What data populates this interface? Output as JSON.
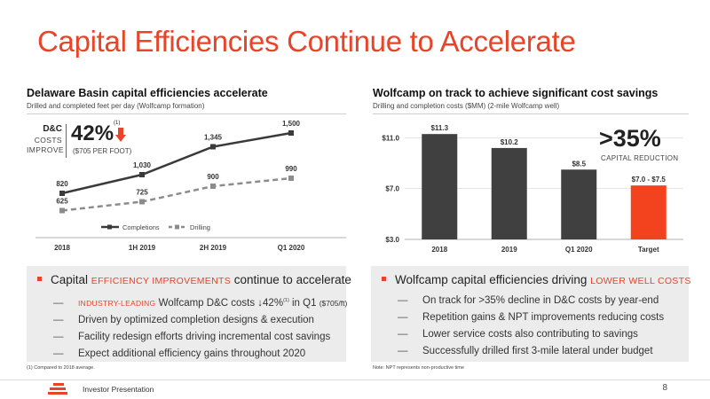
{
  "slide": {
    "title": "Capital Efficiencies Continue to Accelerate"
  },
  "left_panel": {
    "title": "Delaware Basin capital efficiencies accelerate",
    "subtitle": "Drilled and completed feet per day (Wolfcamp formation)",
    "callout": {
      "line1": "D&C",
      "line2": "COSTS",
      "line3": "IMPROVE",
      "value": "42%",
      "sup": "(1)",
      "detail": "($705 PER FOOT)"
    },
    "box": {
      "main_prefix": "Capital ",
      "main_highlight": "EFFICIENCY IMPROVEMENTS",
      "main_suffix": " continue to accelerate",
      "items": [
        {
          "highlight": "INDUSTRY-LEADING",
          "text": " Wolfcamp D&C costs ↓42%",
          "sup": "(1)",
          "text2": " in Q1 ",
          "small": "($705/ft)"
        },
        {
          "text": "Driven by optimized completion designs & execution"
        },
        {
          "text": "Facility redesign efforts driving incremental cost savings"
        },
        {
          "text": "Expect additional efficiency gains throughout 2020"
        }
      ],
      "dash": "—"
    },
    "footnote": "(1)     Compared to 2018 average."
  },
  "right_panel": {
    "title": "Wolfcamp on track to achieve significant cost savings",
    "subtitle": "Drilling and completion costs ($MM) (2-mile Wolfcamp well)",
    "callout": {
      "value": ">35%",
      "label": "CAPITAL REDUCTION"
    },
    "box": {
      "main_prefix": "Wolfcamp capital efficiencies driving ",
      "main_highlight": "LOWER WELL COSTS",
      "items": [
        {
          "text": "On track for >35% decline in D&C costs by year-end"
        },
        {
          "text": "Repetition gains & NPT improvements reducing costs"
        },
        {
          "text": "Lower service costs also contributing to savings"
        },
        {
          "text": "Successfully drilled first 3-mile lateral under budget"
        }
      ],
      "dash": "—"
    },
    "footnote": "Note: NPT represents non-productive time"
  },
  "footer": {
    "label": "Investor Presentation",
    "page": "8"
  },
  "chart_data": [
    {
      "type": "line",
      "categories": [
        "2018",
        "1H 2019",
        "2H 2019",
        "Q1 2020"
      ],
      "series": [
        {
          "name": "Completions",
          "values": [
            820,
            1030,
            1345,
            1500
          ],
          "labels": [
            "820",
            "1,030",
            "1,345",
            "1,500"
          ],
          "color": "#3a3a3a",
          "style": "solid"
        },
        {
          "name": "Drilling",
          "values": [
            625,
            725,
            900,
            990
          ],
          "labels": [
            "625",
            "725",
            "900",
            "990"
          ],
          "color": "#8c8c8c",
          "style": "dashed"
        }
      ],
      "legend": "bottom",
      "ylim": [
        500,
        1600
      ],
      "grid": false
    },
    {
      "type": "bar",
      "categories": [
        "2018",
        "2019",
        "Q1 2020",
        "Target"
      ],
      "values": [
        11.3,
        10.2,
        8.5,
        7.25
      ],
      "labels": [
        "$11.3",
        "$10.2",
        "$8.5",
        "$7.0 - $7.5"
      ],
      "colors": [
        "#404040",
        "#404040",
        "#404040",
        "#f2421e"
      ],
      "yticks": [
        "$3.0",
        "$7.0",
        "$11.0"
      ],
      "ytick_values": [
        3,
        7,
        11
      ],
      "ylim": [
        3,
        12.5
      ],
      "grid": true
    }
  ]
}
